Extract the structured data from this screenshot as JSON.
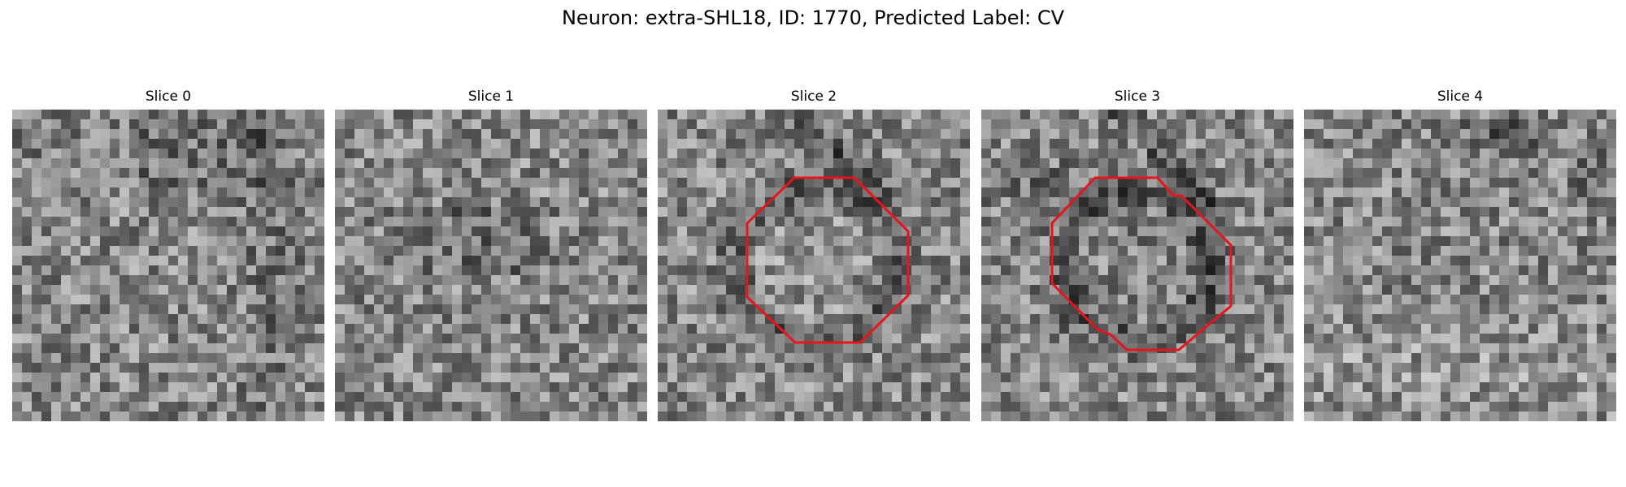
{
  "figure": {
    "title": "Neuron: extra-SHL18, ID: 1770, Predicted Label: CV",
    "outline_color": "#e8141c"
  },
  "panels": [
    {
      "title": "Slice 0",
      "has_outline": false
    },
    {
      "title": "Slice 1",
      "has_outline": false
    },
    {
      "title": "Slice 2",
      "has_outline": true
    },
    {
      "title": "Slice 3",
      "has_outline": true
    },
    {
      "title": "Slice 4",
      "has_outline": false
    }
  ]
}
